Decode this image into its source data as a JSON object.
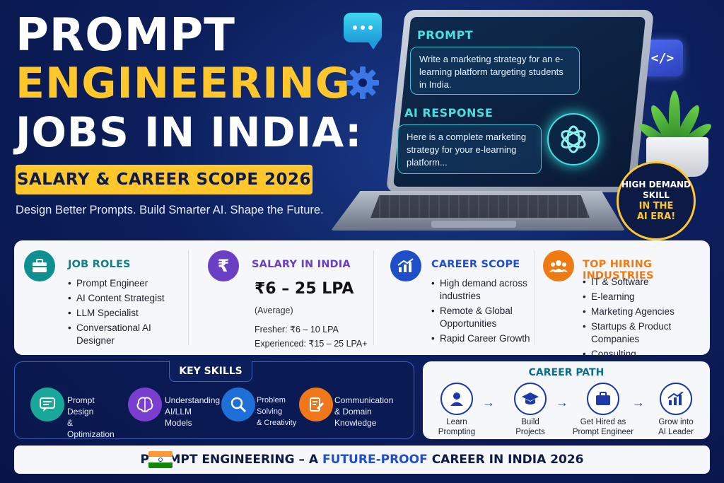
{
  "hero": {
    "line1": "PROMPT",
    "line2": "ENGINEERING",
    "line3": "JOBS IN INDIA:",
    "subtitle_bar": "SALARY & CAREER SCOPE 2026",
    "tagline": "Design Better Prompts. Build Smarter AI. Shape the Future."
  },
  "screen": {
    "prompt_label": "PROMPT",
    "prompt_text": "Write a marketing strategy for an e-learning platform targeting students in India.",
    "response_label": "AI RESPONSE",
    "response_text": "Here is a complete marketing strategy for your e-learning platform..."
  },
  "badge": {
    "line1": "HIGH DEMAND",
    "line2": "SKILL",
    "line3": "IN THE",
    "line4": "AI ERA!"
  },
  "job_roles": {
    "title": "JOB ROLES",
    "items": [
      "Prompt Engineer",
      "AI Content Strategist",
      "LLM Specialist",
      "Conversational AI Designer"
    ]
  },
  "salary": {
    "title": "SALARY IN INDIA",
    "range": "₹6 – 25 LPA",
    "note": "(Average)",
    "fresher": "Fresher: ₹6 – 10 LPA",
    "experienced": "Experienced: ₹15 – 25 LPA+"
  },
  "career_scope": {
    "title": "CAREER SCOPE",
    "items": [
      "High demand across industries",
      "Remote & Global Opportunities",
      "Rapid Career Growth"
    ]
  },
  "industries": {
    "title": "TOP HIRING INDUSTRIES",
    "items": [
      "IT & Software",
      "E-learning",
      "Marketing Agencies",
      "Startups & Product Companies",
      "Consulting"
    ]
  },
  "key_skills": {
    "title": "KEY SKILLS",
    "items": [
      {
        "line1": "Prompt Design",
        "line2": "& Optimization"
      },
      {
        "line1": "Understanding",
        "line2": "AI/LLM Models"
      },
      {
        "line1": "Problem Solving",
        "line2": "& Creativity"
      },
      {
        "line1": "Communication",
        "line2": "& Domain Knowledge"
      }
    ]
  },
  "career_path": {
    "title": "CAREER PATH",
    "steps": [
      {
        "line1": "Learn",
        "line2": "Prompting"
      },
      {
        "line1": "Build",
        "line2": "Projects"
      },
      {
        "line1": "Get Hired as",
        "line2": "Prompt Engineer"
      },
      {
        "line1": "Grow into",
        "line2": "AI Leader"
      }
    ]
  },
  "footer": {
    "part1": "PROMPT ENGINEERING – A",
    "highlight": "FUTURE-PROOF",
    "part2": "CAREER IN INDIA 2026"
  },
  "colors": {
    "background": "#0c1f5c",
    "accent_yellow": "#ffc72c",
    "accent_cyan": "#48e0e0",
    "job_roles": "#0f7f8c",
    "salary": "#6a3fc4",
    "career_scope": "#1d4fc8",
    "industries": "#f07a12"
  }
}
